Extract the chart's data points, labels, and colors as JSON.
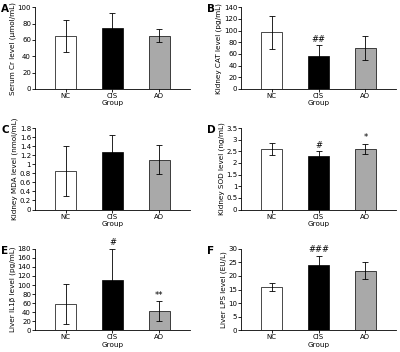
{
  "panels": [
    {
      "label": "A",
      "ylabel": "Serum Cr level (μmol/mL)",
      "xlabel": "Group",
      "categories": [
        "NC",
        "CIS",
        "AO"
      ],
      "values": [
        65,
        75,
        65
      ],
      "errors": [
        20,
        18,
        8
      ],
      "colors": [
        "white",
        "black",
        "gray"
      ],
      "annotations": [
        "",
        "",
        ""
      ],
      "ylim": [
        0,
        100
      ],
      "yticks": [
        0,
        20,
        40,
        60,
        80,
        100
      ]
    },
    {
      "label": "B",
      "ylabel": "Kidney CAT level (pg/mL)",
      "xlabel": "Group",
      "categories": [
        "NC",
        "CIS",
        "AO"
      ],
      "values": [
        97,
        57,
        70
      ],
      "errors": [
        28,
        18,
        20
      ],
      "colors": [
        "white",
        "black",
        "gray"
      ],
      "annotations": [
        "",
        "##",
        ""
      ],
      "ylim": [
        0,
        140
      ],
      "yticks": [
        0,
        20,
        40,
        60,
        80,
        100,
        120,
        140
      ]
    },
    {
      "label": "C",
      "ylabel": "Kidney MDA level (nmol/mL)",
      "xlabel": "Group",
      "categories": [
        "NC",
        "CIS",
        "AO"
      ],
      "values": [
        0.85,
        1.27,
        1.1
      ],
      "errors": [
        0.55,
        0.38,
        0.32
      ],
      "colors": [
        "white",
        "black",
        "gray"
      ],
      "annotations": [
        "",
        "",
        ""
      ],
      "ylim": [
        0,
        1.8
      ],
      "yticks": [
        0,
        0.2,
        0.4,
        0.6,
        0.8,
        1.0,
        1.2,
        1.4,
        1.6,
        1.8
      ]
    },
    {
      "label": "D",
      "ylabel": "Kidney SOD level (ng/mL)",
      "xlabel": "Group",
      "categories": [
        "NC",
        "CIS",
        "AO"
      ],
      "values": [
        2.6,
        2.3,
        2.6
      ],
      "errors": [
        0.25,
        0.2,
        0.22
      ],
      "colors": [
        "white",
        "black",
        "gray"
      ],
      "annotations": [
        "",
        "#",
        "*"
      ],
      "ylim": [
        0,
        3.5
      ],
      "yticks": [
        0,
        0.5,
        1.0,
        1.5,
        2.0,
        2.5,
        3.0,
        3.5
      ]
    },
    {
      "label": "E",
      "ylabel": "Liver IL1β level (pg/mL)",
      "xlabel": "Group",
      "categories": [
        "NC",
        "CIS",
        "AO"
      ],
      "values": [
        58,
        110,
        42
      ],
      "errors": [
        45,
        70,
        22
      ],
      "colors": [
        "white",
        "black",
        "gray"
      ],
      "annotations": [
        "",
        "#",
        "**"
      ],
      "ylim": [
        0,
        180
      ],
      "yticks": [
        0,
        20,
        40,
        60,
        80,
        100,
        120,
        140,
        160,
        180
      ]
    },
    {
      "label": "F",
      "ylabel": "Liver LPS level (EU/L)",
      "xlabel": "Group",
      "categories": [
        "NC",
        "CIS",
        "AO"
      ],
      "values": [
        16,
        24,
        22
      ],
      "errors": [
        1.5,
        3.5,
        3.0
      ],
      "colors": [
        "white",
        "black",
        "gray"
      ],
      "annotations": [
        "",
        "###",
        ""
      ],
      "ylim": [
        0,
        30
      ],
      "yticks": [
        0,
        5,
        10,
        15,
        20,
        25,
        30
      ]
    }
  ],
  "bar_width": 0.45,
  "edgecolor": "black",
  "capsize": 2,
  "background_color": "white",
  "tick_fontsize": 5.0,
  "label_fontsize": 5.2,
  "annotation_fontsize": 6.0,
  "panel_label_fontsize": 7.5
}
